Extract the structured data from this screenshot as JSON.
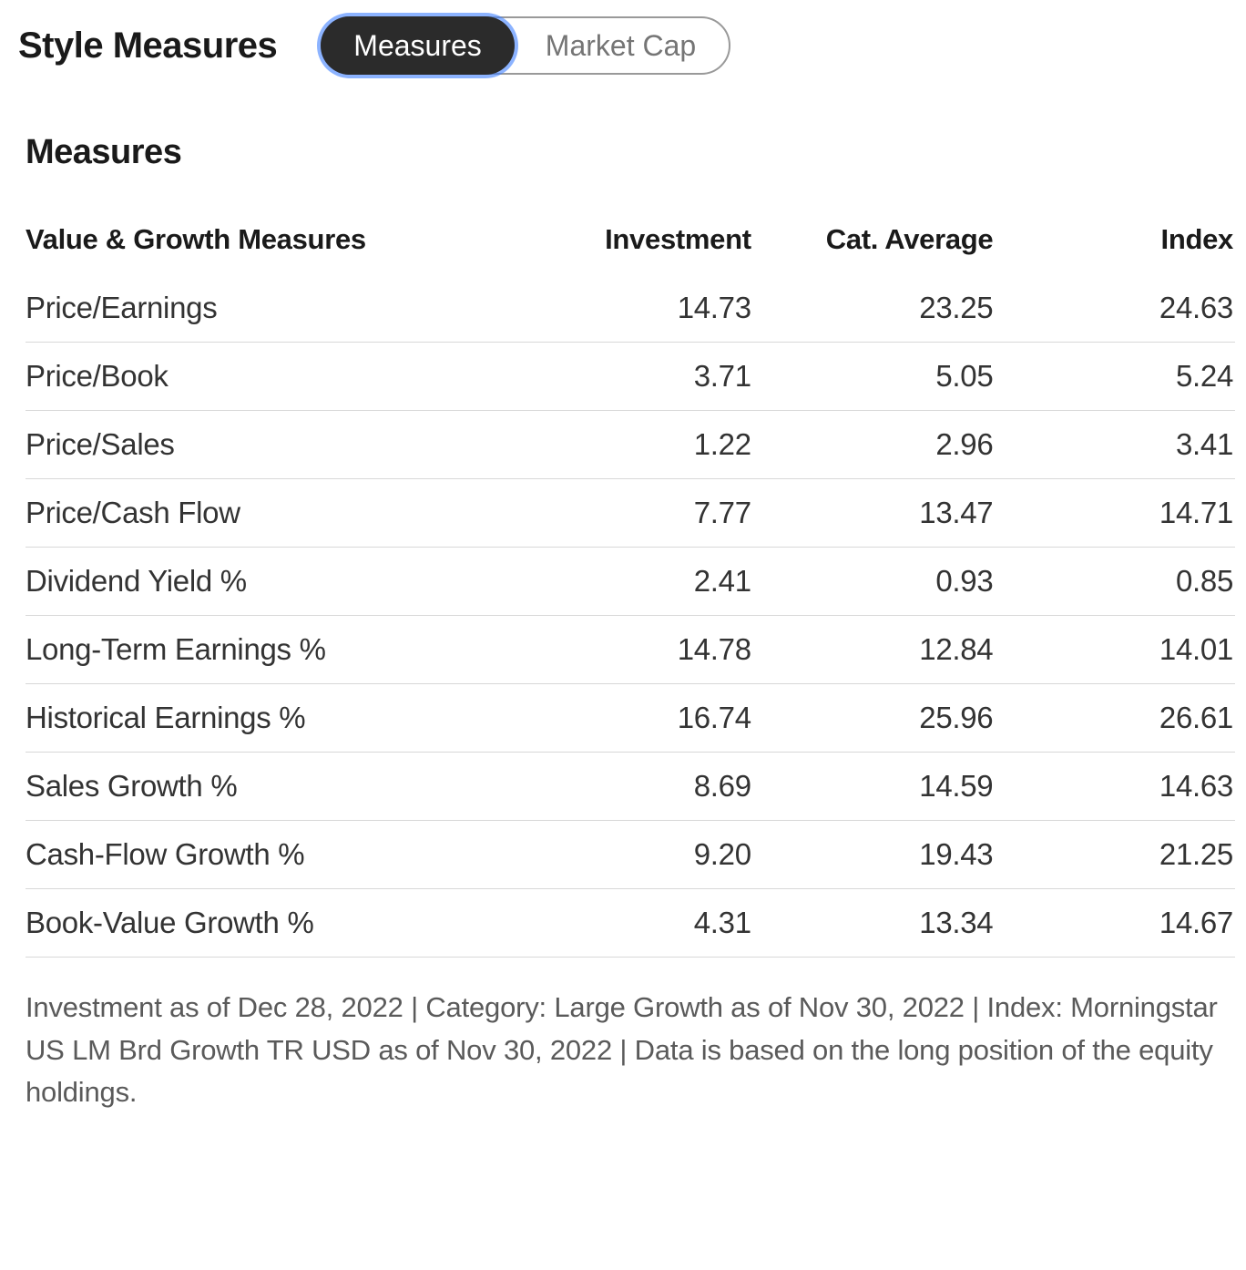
{
  "header": {
    "title": "Style Measures",
    "tabs": [
      {
        "label": "Measures",
        "active": true
      },
      {
        "label": "Market Cap",
        "active": false
      }
    ]
  },
  "section": {
    "title": "Measures",
    "table": {
      "type": "table",
      "columns": [
        "Value & Growth Measures",
        "Investment",
        "Cat. Average",
        "Index"
      ],
      "rows": [
        [
          "Price/Earnings",
          "14.73",
          "23.25",
          "24.63"
        ],
        [
          "Price/Book",
          "3.71",
          "5.05",
          "5.24"
        ],
        [
          "Price/Sales",
          "1.22",
          "2.96",
          "3.41"
        ],
        [
          "Price/Cash Flow",
          "7.77",
          "13.47",
          "14.71"
        ],
        [
          "Dividend Yield %",
          "2.41",
          "0.93",
          "0.85"
        ],
        [
          "Long-Term Earnings %",
          "14.78",
          "12.84",
          "14.01"
        ],
        [
          "Historical Earnings %",
          "16.74",
          "25.96",
          "26.61"
        ],
        [
          "Sales Growth %",
          "8.69",
          "14.59",
          "14.63"
        ],
        [
          "Cash-Flow Growth %",
          "9.20",
          "19.43",
          "21.25"
        ],
        [
          "Book-Value Growth %",
          "4.31",
          "13.34",
          "14.67"
        ]
      ],
      "column_align": [
        "left",
        "right",
        "right",
        "right"
      ],
      "header_fontsize": 31,
      "body_fontsize": 33,
      "border_color": "#d8d8d8",
      "text_color": "#333333",
      "header_color": "#1a1a1a",
      "background_color": "#ffffff"
    }
  },
  "footnote": "Investment as of Dec 28, 2022 | Category: Large Growth as of Nov 30, 2022 | Index: Morningstar US LM Brd Growth TR USD as of Nov 30, 2022 | Data is based on the long position of the equity holdings.",
  "colors": {
    "active_tab_bg": "#2b2b2b",
    "active_tab_text": "#ffffff",
    "active_tab_glow": "rgba(64,128,255,0.6)",
    "inactive_tab_text": "#757575",
    "toggle_border": "#999999",
    "title_text": "#1a1a1a",
    "body_text": "#333333",
    "footnote_text": "#5a5a5a",
    "row_border": "#d8d8d8",
    "background": "#ffffff"
  }
}
